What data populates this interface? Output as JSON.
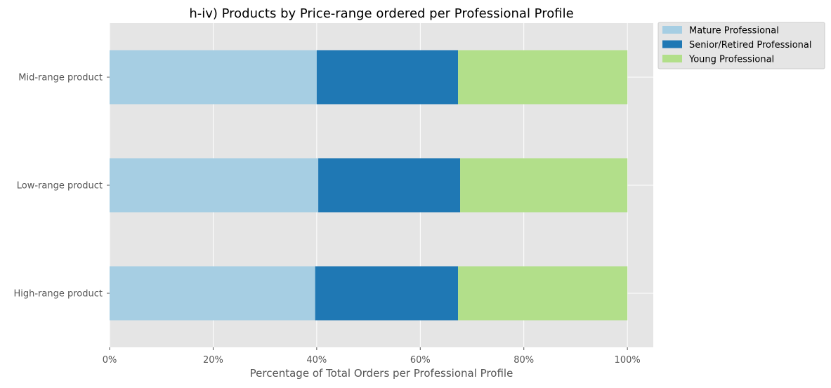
{
  "chart_data": {
    "type": "bar",
    "orientation": "horizontal",
    "stacked": true,
    "title": "h-iv) Products by Price-range ordered per Professional Profile",
    "xlabel": "Percentage of Total Orders per Professional Profile",
    "ylabel": "",
    "categories": [
      "High-range product",
      "Low-range product",
      "Mid-range product"
    ],
    "series": [
      {
        "name": "Mature Professional",
        "color": "#a6cee3",
        "values": [
          39.7,
          40.3,
          40.0
        ]
      },
      {
        "name": "Senior/Retired Professional",
        "color": "#1f78b4",
        "values": [
          27.6,
          27.4,
          27.3
        ]
      },
      {
        "name": "Young Professional",
        "color": "#b2df8a",
        "values": [
          32.7,
          32.3,
          32.7
        ]
      }
    ],
    "xlim": [
      0,
      105
    ],
    "xticks": [
      0,
      20,
      40,
      60,
      80,
      100
    ],
    "xtick_labels": [
      "0%",
      "20%",
      "40%",
      "60%",
      "80%",
      "100%"
    ],
    "grid": true,
    "legend_position": "outside top-right",
    "colors": {
      "plot_background": "#e5e5e5",
      "grid": "#ffffff",
      "text": "#555555"
    }
  }
}
